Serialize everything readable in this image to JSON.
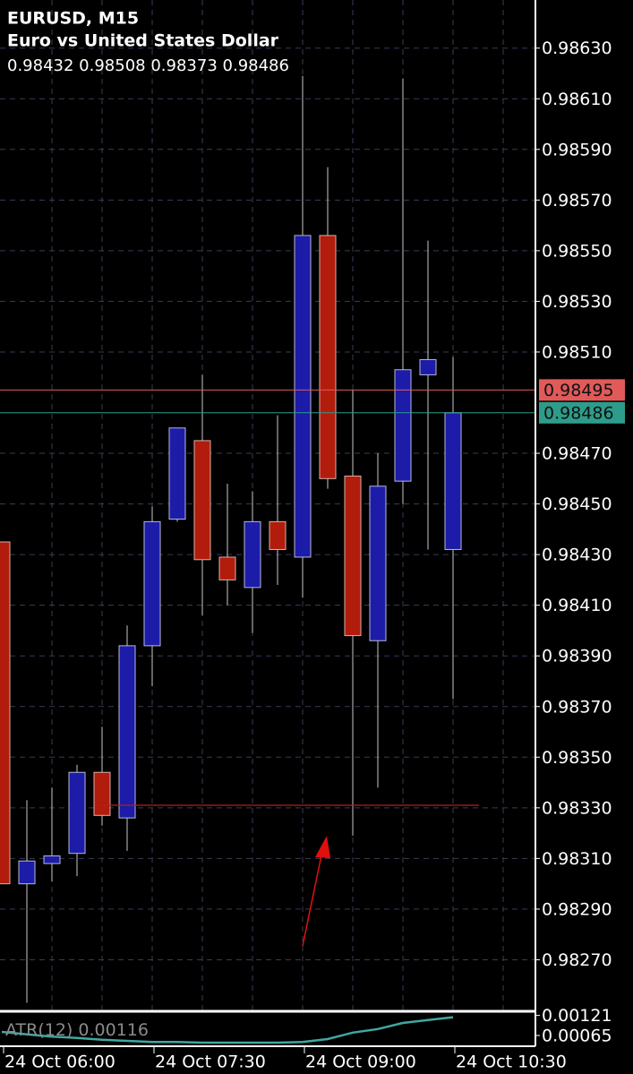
{
  "chart_data": {
    "type": "candlestick",
    "title": "EURUSD, M15",
    "subtitle": "Euro vs United States Dollar",
    "x": [
      "24 Oct 06:00",
      null,
      null,
      null,
      null,
      null,
      "24 Oct 07:30",
      null,
      null,
      null,
      null,
      null,
      "24 Oct 09:00",
      null,
      null,
      null,
      null,
      null,
      "24 Oct 10:30"
    ],
    "candles": [
      {
        "open": 0.98435,
        "high": 0.98435,
        "low": 0.983,
        "close": 0.983
      },
      {
        "open": 0.983,
        "high": 0.98333,
        "low": 0.98253,
        "close": 0.98309
      },
      {
        "open": 0.98308,
        "high": 0.98338,
        "low": 0.98301,
        "close": 0.98311
      },
      {
        "open": 0.98312,
        "high": 0.98347,
        "low": 0.98303,
        "close": 0.98344
      },
      {
        "open": 0.98344,
        "high": 0.98362,
        "low": 0.98323,
        "close": 0.98327
      },
      {
        "open": 0.98326,
        "high": 0.98402,
        "low": 0.98313,
        "close": 0.98394
      },
      {
        "open": 0.98394,
        "high": 0.98449,
        "low": 0.98378,
        "close": 0.98443
      },
      {
        "open": 0.98444,
        "high": 0.9848,
        "low": 0.98443,
        "close": 0.9848
      },
      {
        "open": 0.98475,
        "high": 0.98501,
        "low": 0.98406,
        "close": 0.98428
      },
      {
        "open": 0.98429,
        "high": 0.98458,
        "low": 0.9841,
        "close": 0.9842
      },
      {
        "open": 0.98417,
        "high": 0.98455,
        "low": 0.98399,
        "close": 0.98443
      },
      {
        "open": 0.98443,
        "high": 0.98485,
        "low": 0.98418,
        "close": 0.98432
      },
      {
        "open": 0.98429,
        "high": 0.98619,
        "low": 0.98413,
        "close": 0.98556
      },
      {
        "open": 0.98556,
        "high": 0.98583,
        "low": 0.98456,
        "close": 0.9846
      },
      {
        "open": 0.98461,
        "high": 0.98495,
        "low": 0.98319,
        "close": 0.98398
      },
      {
        "open": 0.98396,
        "high": 0.9847,
        "low": 0.98338,
        "close": 0.98457
      },
      {
        "open": 0.98459,
        "high": 0.98618,
        "low": 0.9845,
        "close": 0.98503
      },
      {
        "open": 0.98501,
        "high": 0.98554,
        "low": 0.98432,
        "close": 0.98507
      },
      {
        "open": 0.98432,
        "high": 0.98508,
        "low": 0.98373,
        "close": 0.98486
      }
    ],
    "up_color": "#1c1ca8",
    "down_color": "#b21c0c",
    "ylim": [
      0.9825,
      0.98649
    ],
    "yticks": [
      {
        "value": 0.9863,
        "label": "0.98630"
      },
      {
        "value": 0.9861,
        "label": "0.98610"
      },
      {
        "value": 0.9859,
        "label": "0.98590"
      },
      {
        "value": 0.9857,
        "label": "0.98570"
      },
      {
        "value": 0.9855,
        "label": "0.98550"
      },
      {
        "value": 0.9853,
        "label": "0.98530"
      },
      {
        "value": 0.9851,
        "label": "0.98510"
      },
      {
        "value": 0.9847,
        "label": "0.98470"
      },
      {
        "value": 0.9845,
        "label": "0.98450"
      },
      {
        "value": 0.9843,
        "label": "0.98430"
      },
      {
        "value": 0.9841,
        "label": "0.98410"
      },
      {
        "value": 0.9839,
        "label": "0.98390"
      },
      {
        "value": 0.9837,
        "label": "0.98370"
      },
      {
        "value": 0.9835,
        "label": "0.98350"
      },
      {
        "value": 0.9833,
        "label": "0.98330"
      },
      {
        "value": 0.9831,
        "label": "0.98310"
      },
      {
        "value": 0.9829,
        "label": "0.98290"
      },
      {
        "value": 0.9827,
        "label": "0.98270"
      }
    ],
    "grid": true,
    "ask": {
      "value": 0.98495,
      "color": "#e05a5a"
    },
    "bid": {
      "value": 0.98486,
      "color": "#2e9c8a"
    },
    "trend_line": {
      "value": 0.98331,
      "color": "#b32020"
    },
    "indicator": {
      "name": "ATR(12)",
      "color": "#3fa8a0",
      "values": [
        0.00075,
        0.00068,
        0.00062,
        0.00058,
        0.00053,
        0.0005,
        0.00047,
        0.00047,
        0.00045,
        0.00045,
        0.00045,
        0.00045,
        0.00047,
        0.00055,
        0.00073,
        0.00083,
        0.001,
        0.00108,
        0.00116
      ],
      "ylim": [
        0.00035,
        0.00125
      ],
      "yticks": [
        0.00121,
        0.00065
      ]
    }
  }
}
